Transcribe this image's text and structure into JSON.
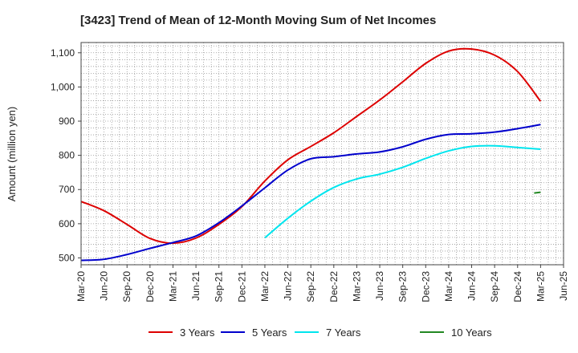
{
  "chart_data": {
    "type": "line",
    "title": "[3423]  Trend of Mean of 12-Month Moving Sum of Net Incomes",
    "xlabel": "",
    "ylabel": "Amount (million yen)",
    "ylim": [
      480,
      1130
    ],
    "yticks": [
      500,
      600,
      700,
      800,
      900,
      1000,
      1100
    ],
    "ytick_labels": [
      "500",
      "600",
      "700",
      "800",
      "900",
      "1,000",
      "1,100"
    ],
    "xlim": [
      "2020-03",
      "2025-06"
    ],
    "x_tick_labels": [
      "Mar-20",
      "Jun-20",
      "Sep-20",
      "Dec-20",
      "Mar-21",
      "Jun-21",
      "Sep-21",
      "Dec-21",
      "Mar-22",
      "Jun-22",
      "Sep-22",
      "Dec-22",
      "Mar-23",
      "Jun-23",
      "Sep-23",
      "Dec-23",
      "Mar-24",
      "Jun-24",
      "Sep-24",
      "Dec-24",
      "Mar-25",
      "Jun-25"
    ],
    "grid": true,
    "legend_position": "bottom",
    "x": [
      "Mar-20",
      "Jun-20",
      "Sep-20",
      "Dec-20",
      "Mar-21",
      "Jun-21",
      "Sep-21",
      "Dec-21",
      "Mar-22",
      "Jun-22",
      "Sep-22",
      "Dec-22",
      "Mar-23",
      "Jun-23",
      "Sep-23",
      "Dec-23",
      "Mar-24",
      "Jun-24",
      "Sep-24",
      "Dec-24",
      "Mar-25"
    ],
    "series": [
      {
        "name": "3 Years",
        "color": "#dd0000",
        "values": [
          665,
          638,
          598,
          557,
          543,
          558,
          598,
          650,
          725,
          787,
          826,
          866,
          914,
          962,
          1015,
          1069,
          1105,
          1111,
          1093,
          1045,
          958
        ]
      },
      {
        "name": "5 Years",
        "color": "#0000cc",
        "values": [
          493,
          496,
          510,
          528,
          545,
          564,
          603,
          652,
          705,
          757,
          790,
          796,
          804,
          810,
          825,
          847,
          861,
          863,
          868,
          878,
          890
        ]
      },
      {
        "name": "7 Years",
        "color": "#00e5ee",
        "values": [
          null,
          null,
          null,
          null,
          null,
          null,
          null,
          null,
          559,
          616,
          666,
          706,
          731,
          745,
          765,
          791,
          813,
          826,
          828,
          823,
          818
        ]
      },
      {
        "name": "10 Years",
        "color": "#228822",
        "values": [
          null,
          null,
          null,
          null,
          null,
          null,
          null,
          null,
          null,
          null,
          null,
          null,
          null,
          null,
          null,
          null,
          null,
          null,
          null,
          null,
          692
        ]
      }
    ]
  }
}
